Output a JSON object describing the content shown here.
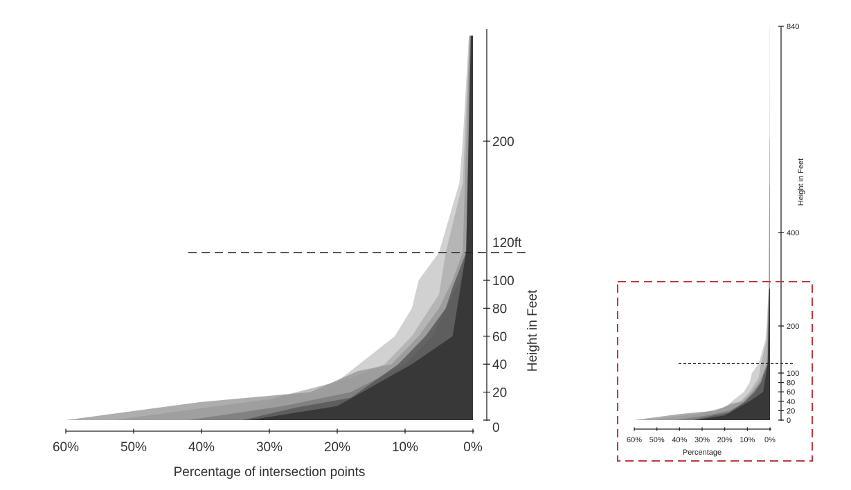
{
  "chart_data": [
    {
      "type": "area",
      "panel": "main",
      "xlabel": "Percentage of intersection points",
      "ylabel": "Height in Feet",
      "x_reversed": true,
      "xlim": [
        0,
        60
      ],
      "ylim": [
        0,
        285
      ],
      "x_ticks": [
        60,
        50,
        40,
        30,
        20,
        10,
        0
      ],
      "x_tick_labels": [
        "60%",
        "50%",
        "40%",
        "30%",
        "20%",
        "10%",
        "0%"
      ],
      "y_ticks": [
        0,
        20,
        40,
        60,
        80,
        100,
        200
      ],
      "y_tick_labels": [
        "0",
        "20",
        "40",
        "60",
        "80",
        "100",
        "200"
      ],
      "reference_line": {
        "value": 120,
        "label": "120ft"
      },
      "series": [
        {
          "color": "#c4c4c4",
          "points": [
            [
              35,
              0
            ],
            [
              28,
              18
            ],
            [
              22,
              20
            ],
            [
              11.5,
              60
            ],
            [
              9,
              80
            ],
            [
              8,
              100
            ],
            [
              5,
              120
            ],
            [
              2,
              170
            ],
            [
              1.5,
              200
            ],
            [
              0.6,
              280
            ],
            [
              0,
              280
            ],
            [
              0,
              0
            ]
          ]
        },
        {
          "color": "#adadad",
          "points": [
            [
              53,
              0
            ],
            [
              30,
              15
            ],
            [
              18,
              30
            ],
            [
              13,
              40
            ],
            [
              9,
              60
            ],
            [
              5,
              90
            ],
            [
              4,
              120
            ],
            [
              3,
              140
            ],
            [
              1.5,
              170
            ],
            [
              0.5,
              280
            ],
            [
              0,
              280
            ],
            [
              0,
              0
            ]
          ]
        },
        {
          "color": "#969696",
          "points": [
            [
              60,
              0
            ],
            [
              40,
              13
            ],
            [
              24,
              20
            ],
            [
              17,
              35
            ],
            [
              12,
              40
            ],
            [
              8,
              60
            ],
            [
              5,
              80
            ],
            [
              3,
              100
            ],
            [
              1.5,
              120
            ],
            [
              0.5,
              280
            ],
            [
              0,
              280
            ],
            [
              0,
              0
            ]
          ]
        },
        {
          "color": "#7a7a7a",
          "points": [
            [
              42,
              0
            ],
            [
              28,
              10
            ],
            [
              18,
              20
            ],
            [
              10,
              40
            ],
            [
              6,
              60
            ],
            [
              4,
              80
            ],
            [
              2,
              100
            ],
            [
              1,
              120
            ],
            [
              0.4,
              280
            ],
            [
              0,
              280
            ],
            [
              0,
              0
            ]
          ]
        },
        {
          "color": "#545454",
          "points": [
            [
              34,
              0
            ],
            [
              26,
              9
            ],
            [
              18,
              16
            ],
            [
              11,
              40
            ],
            [
              7,
              60
            ],
            [
              4,
              80
            ],
            [
              3,
              95
            ],
            [
              1,
              120
            ],
            [
              0.3,
              280
            ],
            [
              0,
              280
            ],
            [
              0,
              0
            ]
          ]
        },
        {
          "color": "#2e2e2e",
          "points": [
            [
              33,
              0
            ],
            [
              20,
              10
            ],
            [
              9,
              40
            ],
            [
              3,
              60
            ],
            [
              1,
              120
            ],
            [
              0.3,
              280
            ],
            [
              0,
              280
            ],
            [
              0,
              0
            ]
          ]
        }
      ]
    },
    {
      "type": "area",
      "panel": "inset",
      "xlabel": "Percentage",
      "ylabel": "Height in Feet",
      "x_reversed": true,
      "xlim": [
        0,
        60
      ],
      "ylim": [
        0,
        840
      ],
      "x_ticks": [
        60,
        50,
        40,
        30,
        20,
        10,
        0
      ],
      "x_tick_labels": [
        "60%",
        "50%",
        "40%",
        "30%",
        "20%",
        "10%",
        "0%"
      ],
      "y_ticks": [
        0,
        20,
        40,
        60,
        80,
        100,
        200,
        400,
        840
      ],
      "y_tick_labels": [
        "0",
        "20",
        "40",
        "60",
        "80",
        "100",
        "200",
        "400",
        "840"
      ],
      "reference_line": {
        "value": 120
      },
      "series": [
        {
          "color": "#c4c4c4",
          "points": [
            [
              35,
              0
            ],
            [
              28,
              18
            ],
            [
              22,
              20
            ],
            [
              11.5,
              60
            ],
            [
              9,
              80
            ],
            [
              8,
              100
            ],
            [
              5,
              120
            ],
            [
              2,
              170
            ],
            [
              1.5,
              200
            ],
            [
              0.6,
              280
            ],
            [
              0.2,
              500
            ],
            [
              0.1,
              840
            ],
            [
              0,
              840
            ],
            [
              0,
              0
            ]
          ]
        },
        {
          "color": "#adadad",
          "points": [
            [
              53,
              0
            ],
            [
              30,
              15
            ],
            [
              18,
              30
            ],
            [
              13,
              40
            ],
            [
              9,
              60
            ],
            [
              5,
              90
            ],
            [
              4,
              120
            ],
            [
              3,
              140
            ],
            [
              1.5,
              170
            ],
            [
              0.5,
              280
            ],
            [
              0.2,
              600
            ],
            [
              0,
              600
            ],
            [
              0,
              0
            ]
          ]
        },
        {
          "color": "#969696",
          "points": [
            [
              60,
              0
            ],
            [
              40,
              13
            ],
            [
              24,
              20
            ],
            [
              17,
              35
            ],
            [
              12,
              40
            ],
            [
              8,
              60
            ],
            [
              5,
              80
            ],
            [
              3,
              100
            ],
            [
              1.5,
              120
            ],
            [
              0.5,
              280
            ],
            [
              0.2,
              500
            ],
            [
              0,
              500
            ],
            [
              0,
              0
            ]
          ]
        },
        {
          "color": "#7a7a7a",
          "points": [
            [
              42,
              0
            ],
            [
              28,
              10
            ],
            [
              18,
              20
            ],
            [
              10,
              40
            ],
            [
              6,
              60
            ],
            [
              4,
              80
            ],
            [
              2,
              100
            ],
            [
              1,
              120
            ],
            [
              0.4,
              280
            ],
            [
              0,
              280
            ],
            [
              0,
              0
            ]
          ]
        },
        {
          "color": "#545454",
          "points": [
            [
              34,
              0
            ],
            [
              26,
              9
            ],
            [
              18,
              16
            ],
            [
              11,
              40
            ],
            [
              7,
              60
            ],
            [
              4,
              80
            ],
            [
              3,
              95
            ],
            [
              1,
              120
            ],
            [
              0.3,
              280
            ],
            [
              0,
              280
            ],
            [
              0,
              0
            ]
          ]
        },
        {
          "color": "#2e2e2e",
          "points": [
            [
              33,
              0
            ],
            [
              20,
              10
            ],
            [
              9,
              40
            ],
            [
              3,
              60
            ],
            [
              1,
              120
            ],
            [
              0.3,
              280
            ],
            [
              0,
              280
            ],
            [
              0,
              0
            ]
          ]
        }
      ]
    }
  ],
  "colors": {
    "axis": "#222222",
    "text": "#333333",
    "reference_line": "#222222",
    "zoom_box": "#c0393b"
  }
}
